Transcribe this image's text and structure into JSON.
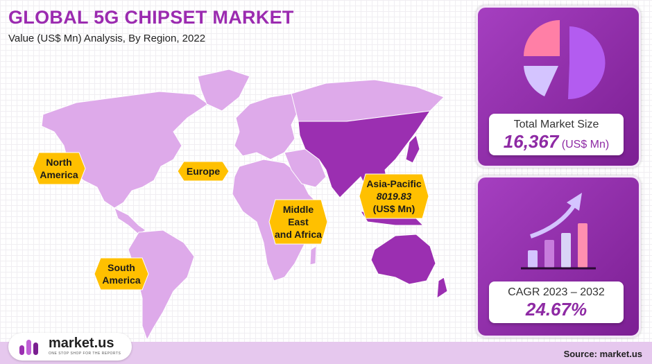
{
  "header": {
    "title": "GLOBAL 5G CHIPSET MARKET",
    "subtitle": "Value (US$ Mn) Analysis, By Region, 2022"
  },
  "regions": [
    {
      "lines": [
        "North",
        "America"
      ]
    },
    {
      "lines": [
        "Europe"
      ]
    },
    {
      "lines": [
        "Middle",
        "East",
        "and Africa"
      ]
    },
    {
      "lines": [
        "Asia-Pacific",
        "8019.83",
        "(US$ Mn)"
      ]
    },
    {
      "lines": [
        "South",
        "America"
      ]
    }
  ],
  "total_market": {
    "label": "Total Market Size",
    "value": "16,367",
    "unit": "(US$ Mn)"
  },
  "cagr": {
    "label": "CAGR 2023 – 2032",
    "value": "24.67%"
  },
  "footer": {
    "logo": "market.us",
    "tagline": "ONE STOP SHOP FOR THE REPORTS",
    "source": "Source: market.us"
  }
}
